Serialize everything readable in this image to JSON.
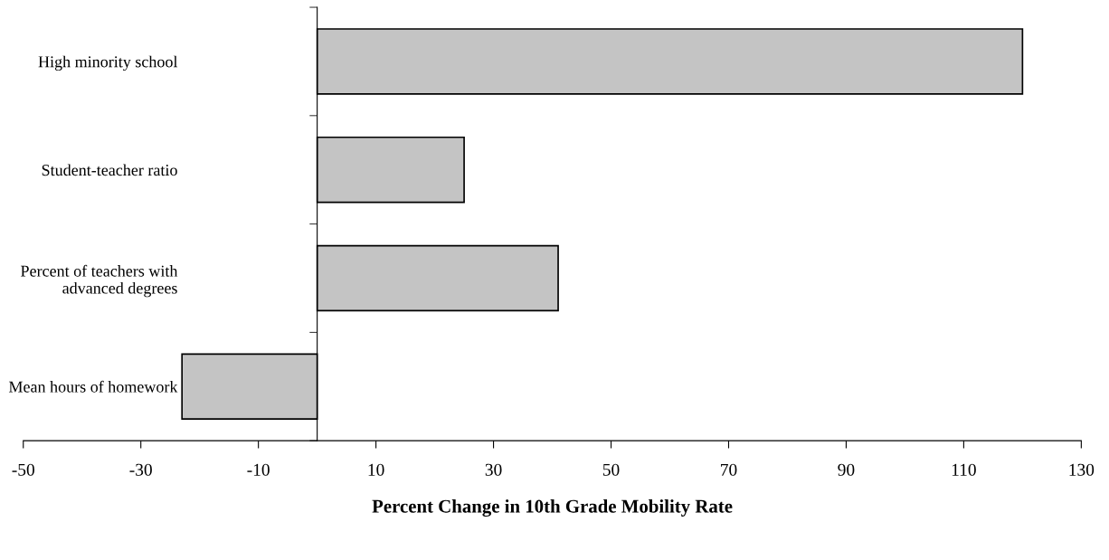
{
  "chart_data": {
    "type": "bar",
    "orientation": "horizontal",
    "xlabel": "Percent Change in 10th Grade Mobility Rate",
    "categories": [
      "High minority school",
      "Student-teacher ratio",
      "Percent of teachers with\nadvanced degrees",
      "Mean hours of homework"
    ],
    "values": [
      120,
      25,
      41,
      -23
    ],
    "color": "#c4c4c4",
    "xlim": [
      -50,
      130
    ],
    "xticks": [
      -50,
      -30,
      -10,
      10,
      30,
      50,
      70,
      90,
      110,
      130
    ],
    "grid": false,
    "legend": false
  }
}
